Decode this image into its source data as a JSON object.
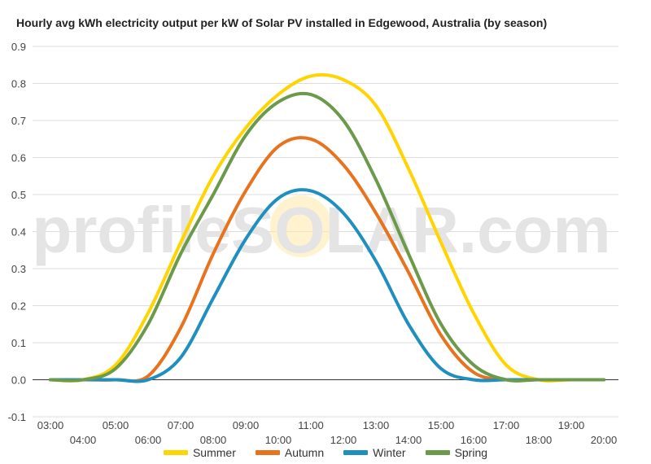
{
  "chart_data": {
    "type": "line",
    "title": "Hourly avg kWh electricity output per kW of Solar PV installed in Edgewood, Australia (by season)",
    "watermark": "profileSOLAR.com",
    "x": [
      "03:00",
      "04:00",
      "05:00",
      "06:00",
      "07:00",
      "08:00",
      "09:00",
      "10:00",
      "11:00",
      "12:00",
      "13:00",
      "14:00",
      "15:00",
      "16:00",
      "17:00",
      "18:00",
      "19:00",
      "20:00"
    ],
    "ylim": [
      -0.1,
      0.9
    ],
    "yticks": [
      "-0.1",
      "0.0",
      "0.1",
      "0.2",
      "0.3",
      "0.4",
      "0.5",
      "0.6",
      "0.7",
      "0.8",
      "0.9"
    ],
    "grid": true,
    "legend_position": "bottom",
    "series": [
      {
        "name": "Summer",
        "color": "#FFD400",
        "values": [
          0.0,
          0.0,
          0.04,
          0.18,
          0.37,
          0.55,
          0.68,
          0.77,
          0.82,
          0.81,
          0.74,
          0.57,
          0.37,
          0.18,
          0.04,
          0.0,
          0.0,
          0.0
        ]
      },
      {
        "name": "Autumn",
        "color": "#E8731E",
        "values": [
          0.0,
          0.0,
          0.0,
          0.01,
          0.14,
          0.34,
          0.51,
          0.63,
          0.65,
          0.58,
          0.45,
          0.29,
          0.12,
          0.02,
          0.0,
          0.0,
          0.0,
          0.0
        ]
      },
      {
        "name": "Winter",
        "color": "#1E8FBF",
        "values": [
          0.0,
          0.0,
          0.0,
          0.0,
          0.06,
          0.22,
          0.38,
          0.49,
          0.51,
          0.45,
          0.32,
          0.15,
          0.03,
          0.0,
          0.0,
          0.0,
          0.0,
          0.0
        ]
      },
      {
        "name": "Spring",
        "color": "#6A9A4A",
        "values": [
          0.0,
          0.0,
          0.03,
          0.15,
          0.34,
          0.5,
          0.66,
          0.75,
          0.77,
          0.7,
          0.54,
          0.34,
          0.15,
          0.04,
          0.0,
          0.0,
          0.0,
          0.0
        ]
      }
    ]
  }
}
